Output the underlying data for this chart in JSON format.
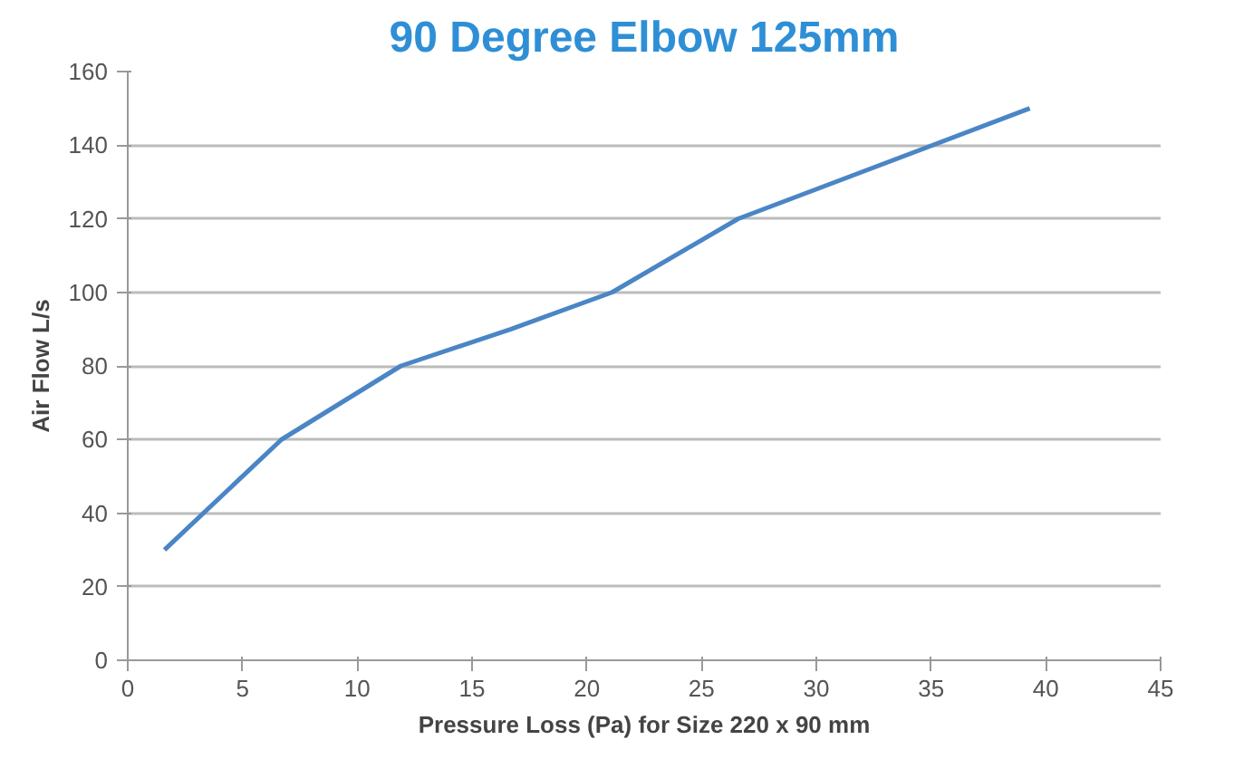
{
  "chart_data": {
    "type": "line",
    "title": "90 Degree Elbow 125mm",
    "xlabel": "Pressure Loss (Pa) for Size 220 x 90 mm",
    "ylabel": "Air Flow L/s",
    "x": [
      1.6,
      6.7,
      11.9,
      16.7,
      21.1,
      26.6,
      39.3
    ],
    "series": [
      {
        "color": "#4a86c5",
        "values": [
          30,
          60,
          80,
          90,
          100,
          120,
          150
        ]
      }
    ],
    "xlim": [
      0,
      45
    ],
    "xticks": [
      0,
      5,
      10,
      15,
      20,
      25,
      30,
      35,
      40,
      45
    ],
    "ylim": [
      0,
      160
    ],
    "yticks": [
      0,
      20,
      40,
      60,
      80,
      100,
      120,
      140,
      160
    ],
    "grid": "y",
    "marker": "none",
    "line_style": "solid"
  }
}
